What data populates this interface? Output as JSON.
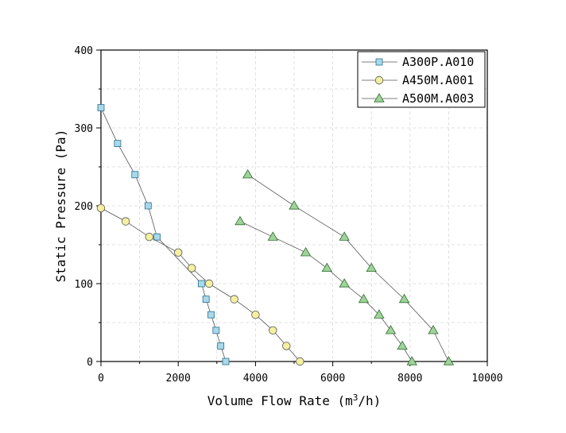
{
  "chart_data": {
    "type": "line",
    "xlabel": "Volume Flow Rate (m³/h)",
    "xlabel_main": "Volume Flow Rate (m",
    "xlabel_sup": "3",
    "xlabel_tail": "/h)",
    "ylabel": "Static Pressure (Pa)",
    "xlim": [
      0,
      10000
    ],
    "ylim": [
      0,
      400
    ],
    "xticks": [
      0,
      2000,
      4000,
      6000,
      8000,
      10000
    ],
    "yticks": [
      0,
      100,
      200,
      300,
      400
    ],
    "xtick_labels": [
      "0",
      "2000",
      "4000",
      "6000",
      "8000",
      "10000"
    ],
    "ytick_labels": [
      "0",
      "100",
      "200",
      "300",
      "400"
    ],
    "grid": true,
    "legend_position": "top-right",
    "series": [
      {
        "name": "A300P.A010",
        "marker": "square",
        "color": "#a8d8ea",
        "points": [
          [
            0,
            326
          ],
          [
            430,
            280
          ],
          [
            880,
            240
          ],
          [
            1220,
            200
          ],
          [
            1450,
            160
          ],
          [
            2600,
            100
          ],
          [
            2720,
            80
          ],
          [
            2850,
            60
          ],
          [
            2980,
            40
          ],
          [
            3100,
            20
          ],
          [
            3230,
            0
          ]
        ]
      },
      {
        "name": "A450M.A001",
        "marker": "circle",
        "color": "#f5f0a0",
        "points": [
          [
            0,
            197
          ],
          [
            640,
            180
          ],
          [
            1250,
            160
          ],
          [
            2000,
            140
          ],
          [
            2350,
            120
          ],
          [
            2800,
            100
          ],
          [
            3450,
            80
          ],
          [
            4000,
            60
          ],
          [
            4450,
            40
          ],
          [
            4800,
            20
          ],
          [
            5150,
            0
          ]
        ]
      },
      {
        "name": "A500M.A003",
        "marker": "triangle",
        "color": "#9fd39a",
        "lines": [
          [
            [
              3800,
              240
            ],
            [
              5000,
              200
            ],
            [
              6300,
              160
            ],
            [
              7000,
              120
            ],
            [
              7850,
              80
            ],
            [
              8600,
              40
            ],
            [
              9000,
              0
            ]
          ],
          [
            [
              3600,
              180
            ],
            [
              4450,
              160
            ],
            [
              5300,
              140
            ],
            [
              5850,
              120
            ],
            [
              6300,
              100
            ],
            [
              6800,
              80
            ],
            [
              7200,
              60
            ],
            [
              7500,
              40
            ],
            [
              7800,
              20
            ],
            [
              8050,
              0
            ]
          ]
        ]
      }
    ]
  }
}
